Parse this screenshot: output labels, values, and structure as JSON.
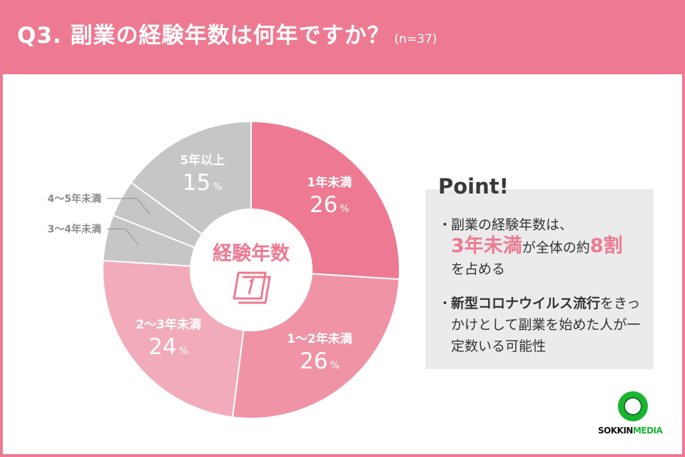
{
  "header": {
    "title": "Q3. 副業の経験年数は何年ですか？",
    "sample": "(n=37)"
  },
  "chart_data": {
    "type": "pie",
    "center_label": "経験年数",
    "center_icon": "calendar-icon",
    "slices": [
      {
        "label": "1年未満",
        "value": 26,
        "display": "26",
        "color": "#ED7A92",
        "label_color": "#ffffff",
        "inside": true
      },
      {
        "label": "1〜2年未満",
        "value": 26,
        "display": "26",
        "color": "#F093A6",
        "label_color": "#ffffff",
        "inside": true
      },
      {
        "label": "2〜3年未満",
        "value": 24,
        "display": "24",
        "color": "#F2ABBA",
        "label_color": "#ffffff",
        "inside": true
      },
      {
        "label": "3〜4年未満",
        "value": 5,
        "display": "",
        "color": "#C6C6C6",
        "label_color": "#8c8c8c",
        "inside": false
      },
      {
        "label": "4〜5年未満",
        "value": 4,
        "display": "",
        "color": "#C6C6C6",
        "label_color": "#8c8c8c",
        "inside": false
      },
      {
        "label": "5年以上",
        "value": 15,
        "display": "15",
        "color": "#C6C6C6",
        "label_color": "#ffffff",
        "inside": true
      }
    ],
    "unit": "%"
  },
  "point": {
    "title": "Point!",
    "bullet_marker": "・",
    "b1_pre": "副業の経験年数は、",
    "b1_hl": "3年未満",
    "b1_mid": "が全体の約",
    "b1_hl2": "8割",
    "b1_post": "を占める",
    "b2_bold": "新型コロナウイルス流行",
    "b2_rest": "をきっかけとして副業を始めた人が一定数いる可能性"
  },
  "logo": {
    "text_a": "SOKKIN",
    "text_b": "MEDIA",
    "color": "#18B531"
  }
}
